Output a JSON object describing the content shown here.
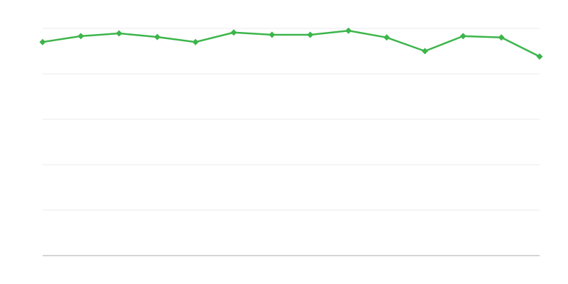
{
  "chart_data": {
    "type": "line",
    "title": "",
    "xlabel": "",
    "ylabel": "",
    "x": [
      1,
      2,
      3,
      4,
      5,
      6,
      7,
      8,
      9,
      10,
      11,
      12,
      13,
      14
    ],
    "series": [
      {
        "values": [
          4.7,
          4.83,
          4.89,
          4.81,
          4.7,
          4.91,
          4.86,
          4.86,
          4.95,
          4.8,
          4.5,
          4.83,
          4.8,
          4.38
        ]
      }
    ],
    "ylim": [
      0,
      5
    ],
    "yticks": [
      0,
      1,
      2,
      3,
      4,
      5
    ],
    "grid": true,
    "marker": "diamond",
    "colors": {
      "line": "#3cb54a",
      "grid": "#ebebeb",
      "axis": "#aaaaaa"
    }
  }
}
